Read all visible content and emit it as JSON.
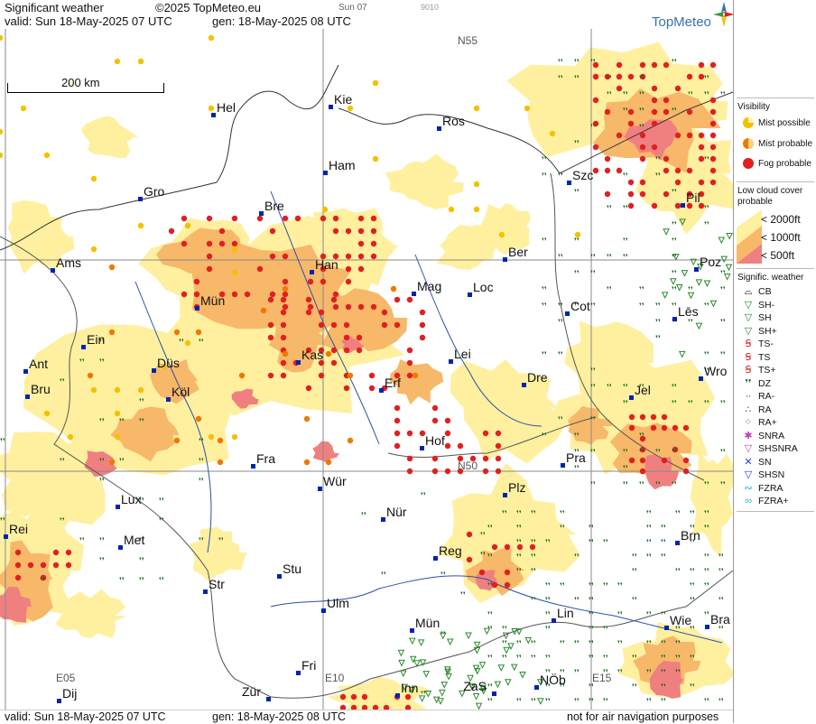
{
  "header": {
    "title": "Significant weather",
    "copyright": "©2025 TopMeteo.eu",
    "small_day": "Sun 07",
    "small_code": "9010",
    "valid": "valid:  Sun  18-May-2025  07 UTC",
    "gen": "gen: 18-May-2025 08 UTC",
    "logo": "TopMeteo"
  },
  "footer": {
    "valid": "valid:  Sun  18-May-2025  07 UTC",
    "gen": "gen: 18-May-2025 08 UTC",
    "note": "not for air navigation purposes"
  },
  "map": {
    "scale_label": "200 km",
    "grid_labels": [
      "N55",
      "N50",
      "E05",
      "E10",
      "E15"
    ],
    "cities": [
      "Hel",
      "Kie",
      "Ros",
      "Ham",
      "Szc",
      "Gro",
      "Bre",
      "Pil",
      "Ams",
      "Han",
      "Ber",
      "Poz",
      "Mag",
      "Loc",
      "Cot",
      "Mün",
      "Les",
      "Ein",
      "Kas",
      "Lei",
      "Ant",
      "Düs",
      "Wro",
      "Dre",
      "Bru",
      "Köl",
      "Erf",
      "Jel",
      "Hof",
      "Fra",
      "Pra",
      "Würz",
      "Plz",
      "Lux",
      "Nür",
      "Rei",
      "Met",
      "Reg",
      "Brn",
      "Str",
      "Stu",
      "Lin",
      "Ulm",
      "Münc",
      "Wie",
      "Bra",
      "Fri",
      "NÖb",
      "Dij",
      "Zür",
      "Inn",
      "ZaS"
    ],
    "city_names": {
      "Hel": "Hel",
      "Kie": "Kie",
      "Ros": "Ros",
      "Ham": "Ham",
      "Szc": "Szc",
      "Gro": "Gro",
      "Bre": "Bre",
      "Pil": "Pil",
      "Ams": "Ams",
      "Han": "Han",
      "Ber": "Ber",
      "Poz": "Poz",
      "Mag": "Mag",
      "Loc": "Loc",
      "Cot": "Cot",
      "Mün": "Mün",
      "Les": "Lēs",
      "Ein": "Ein",
      "Kas": "Kas",
      "Lei": "Lei",
      "Ant": "Ant",
      "Düs": "Düs",
      "Wro": "Wro",
      "Dre": "Dre",
      "Bru": "Bru",
      "Köl": "Köl",
      "Erf": "Erf",
      "Jel": "Jel",
      "Hof": "Hof",
      "Fra": "Fra",
      "Pra": "Pra",
      "Würz": "Wür",
      "Plz": "Plz",
      "Lux": "Lux",
      "Nür": "Nür",
      "Rei": "Rei",
      "Met": "Met",
      "Reg": "Reg",
      "Brn": "Brn",
      "Str": "Str",
      "Stu": "Stu",
      "Lin": "Lin",
      "Ulm": "Ulm",
      "Münc": "Mün",
      "Wie": "Wie",
      "Bra": "Bra",
      "Fri": "Fri",
      "NÖb": "NÖb",
      "Dij": "Dij",
      "Zür": "Zür",
      "Inn": "Inn",
      "ZaS": "ZaS"
    }
  },
  "legend": {
    "visibility_title": "Visibility",
    "visibility": [
      {
        "label": "Mist possible",
        "color": "#f2c200"
      },
      {
        "label": "Mist probable",
        "color": "#f07800"
      },
      {
        "label": "Fog probable",
        "color": "#e02020"
      }
    ],
    "cloud_title_1": "Low cloud cover",
    "cloud_title_2": "probable",
    "cloud": [
      {
        "label": "< 2000ft",
        "color": "#fff0a0"
      },
      {
        "label": "< 1000ft",
        "color": "#f7b86a"
      },
      {
        "label": "< 500ft",
        "color": "#f08080"
      }
    ],
    "wx_title": "Signific. weather",
    "wx": [
      {
        "label": "CB",
        "sym": "⌓",
        "color": "#000000"
      },
      {
        "label": "SH-",
        "sym": "▽",
        "color": "#2a8a2a"
      },
      {
        "label": "SH",
        "sym": "▽",
        "color": "#2a8a2a"
      },
      {
        "label": "SH+",
        "sym": "▽",
        "color": "#2a8a2a"
      },
      {
        "label": "TS-",
        "sym": "Ꞩ",
        "color": "#d02020"
      },
      {
        "label": "TS",
        "sym": "Ꞩ",
        "color": "#d02020"
      },
      {
        "label": "TS+",
        "sym": "Ꞩ",
        "color": "#d02020"
      },
      {
        "label": "DZ",
        "sym": "❜❜",
        "color": "#1a6a1a"
      },
      {
        "label": "RA-",
        "sym": "∙∙",
        "color": "#1a6a1a"
      },
      {
        "label": "RA",
        "sym": "∴",
        "color": "#1a6a1a"
      },
      {
        "label": "RA+",
        "sym": "⁘",
        "color": "#1a6a1a"
      },
      {
        "label": "SNRA",
        "sym": "✱",
        "color": "#c040c0"
      },
      {
        "label": "SHSNRA",
        "sym": "▽",
        "color": "#c040c0"
      },
      {
        "label": "SN",
        "sym": "✕",
        "color": "#2040c0"
      },
      {
        "label": "SHSN",
        "sym": "▽",
        "color": "#2040c0"
      },
      {
        "label": "FZRA",
        "sym": "∾",
        "color": "#20b0e0"
      },
      {
        "label": "FZRA+",
        "sym": "∞",
        "color": "#20b0e0"
      }
    ]
  }
}
